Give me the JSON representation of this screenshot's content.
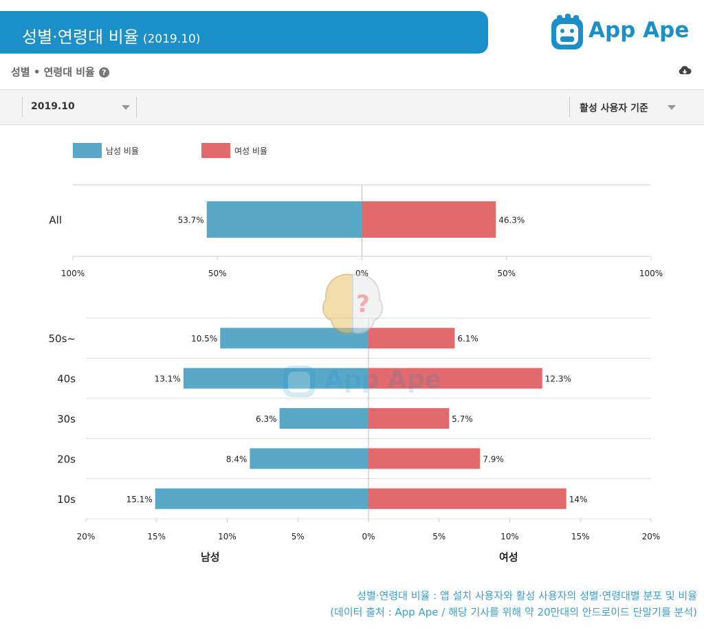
{
  "header": {
    "title": "성별·연령대 비율",
    "title_period": "(2019.10)",
    "brand": "App Ape",
    "brand_color": "#1a8fc8"
  },
  "section": {
    "heading": "성별 • 연령대 비율",
    "help_icon": "help-icon",
    "download_icon": "cloud-download-icon"
  },
  "filters": {
    "date_value": "2019.10",
    "basis_value": "활성 사용자 기준"
  },
  "legend": {
    "male": "남성 비율",
    "female": "여성 비율"
  },
  "colors": {
    "male": "#5aa8c8",
    "female": "#e2696c"
  },
  "chart_data": [
    {
      "type": "bar",
      "orientation": "horizontal-diverging",
      "categories": [
        "All"
      ],
      "series": [
        {
          "name": "남성 비율",
          "values": [
            53.7
          ]
        },
        {
          "name": "여성 비율",
          "values": [
            46.3
          ]
        }
      ],
      "value_labels": {
        "male": [
          "53.7%"
        ],
        "female": [
          "46.3%"
        ]
      },
      "xlim": [
        -100,
        100
      ],
      "ticks": [
        "100%",
        "50%",
        "0%",
        "50%",
        "100%"
      ]
    },
    {
      "type": "bar",
      "orientation": "horizontal-diverging",
      "categories": [
        "50s~",
        "40s",
        "30s",
        "20s",
        "10s"
      ],
      "series": [
        {
          "name": "남성",
          "values": [
            10.5,
            13.1,
            6.3,
            8.4,
            15.1
          ]
        },
        {
          "name": "여성",
          "values": [
            6.1,
            12.3,
            5.7,
            7.9,
            14
          ]
        }
      ],
      "value_labels": {
        "male": [
          "10.5%",
          "13.1%",
          "6.3%",
          "8.4%",
          "15.1%"
        ],
        "female": [
          "6.1%",
          "12.3%",
          "5.7%",
          "7.9%",
          "14%"
        ]
      },
      "xlim": [
        -20,
        20
      ],
      "ticks": [
        "20%",
        "15%",
        "10%",
        "5%",
        "0%",
        "5%",
        "10%",
        "15%",
        "20%"
      ],
      "xlabel_left": "남성",
      "xlabel_right": "여성"
    }
  ],
  "footer": {
    "line1": "성별·연령대 비율 : 앱 설치 사용자와 활성 사용자의 성별·연령대별 분포 및 비율",
    "line2": "(데이터 출처 : App Ape / 해당 기사를 위해 약 20만대의 안드로이드 단말기를 분석)"
  },
  "watermark": "App Ape"
}
